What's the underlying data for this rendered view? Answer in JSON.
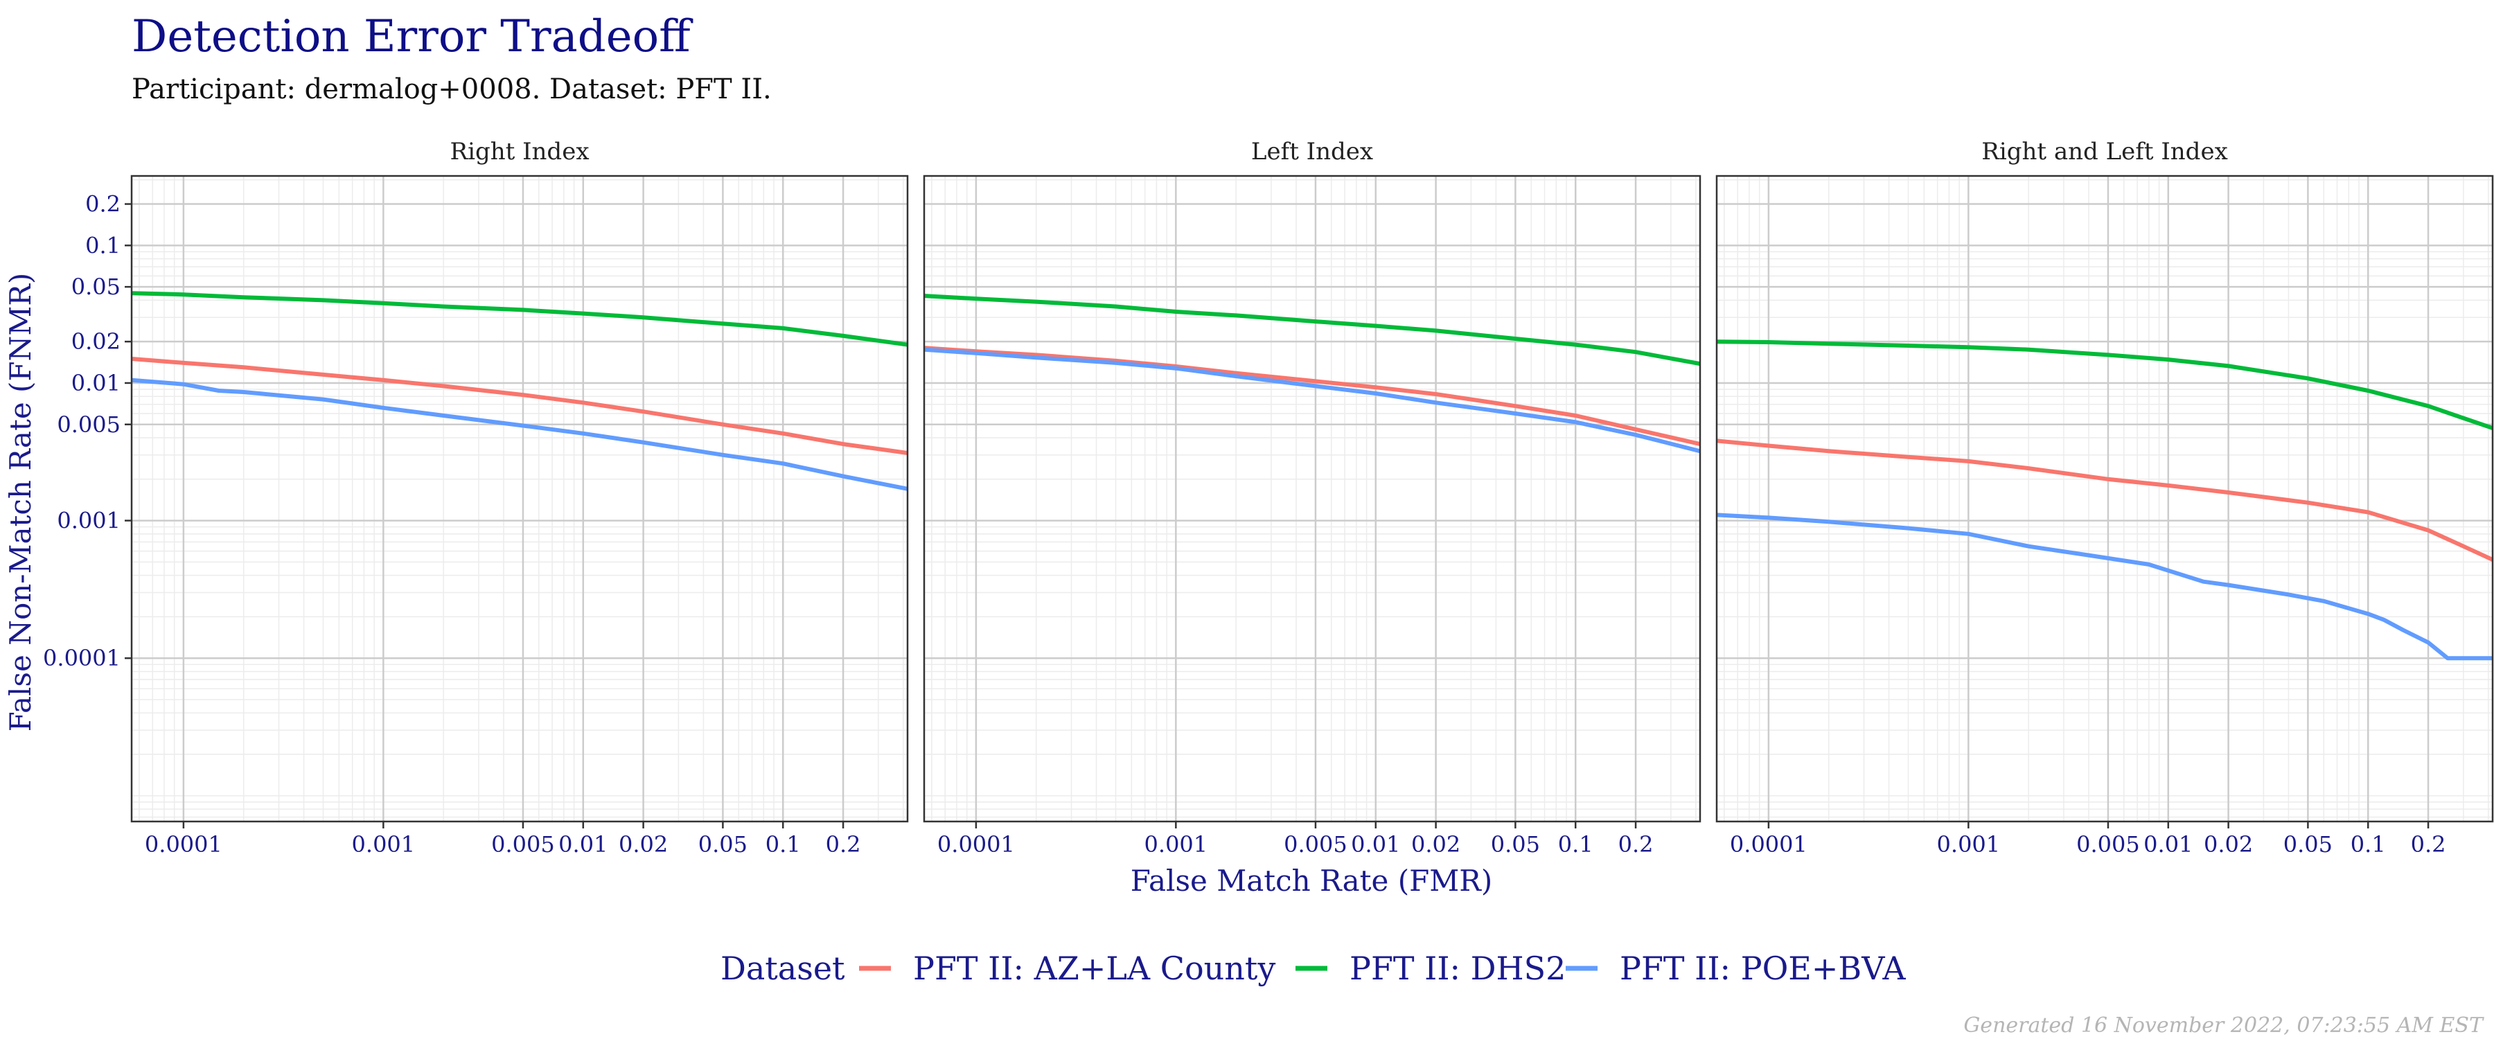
{
  "title": "Detection Error Tradeoff",
  "subtitle": "Participant: dermalog+0008. Dataset: PFT II.",
  "footer": "Generated 16 November 2022, 07:23:55 AM EST",
  "colors": {
    "title": "#0e0e87",
    "axis_text": "#1a1a8c",
    "panel_border": "#333333",
    "grid_major": "#cccccc",
    "grid_minor": "#ececec",
    "strip_text": "#222222",
    "footer": "#b5b5b5"
  },
  "chart_data": {
    "type": "line",
    "xlabel": "False Match Rate (FMR)",
    "ylabel": "False Non-Match Rate (FNMR)",
    "x_scale": "log10",
    "y_scale": "log10",
    "xlim": [
      5.5e-05,
      0.42
    ],
    "ylim": [
      6.5e-06,
      0.32
    ],
    "x_ticks": [
      {
        "v": 0.0001,
        "label": "0.0001"
      },
      {
        "v": 0.001,
        "label": "0.001"
      },
      {
        "v": 0.005,
        "label": "0.005"
      },
      {
        "v": 0.01,
        "label": "0.01"
      },
      {
        "v": 0.02,
        "label": "0.02"
      },
      {
        "v": 0.05,
        "label": "0.05"
      },
      {
        "v": 0.1,
        "label": "0.1"
      },
      {
        "v": 0.2,
        "label": "0.2"
      }
    ],
    "y_ticks": [
      {
        "v": 0.0001,
        "label": "0.0001"
      },
      {
        "v": 0.001,
        "label": "0.001"
      },
      {
        "v": 0.005,
        "label": "0.005"
      },
      {
        "v": 0.01,
        "label": "0.01"
      },
      {
        "v": 0.02,
        "label": "0.02"
      },
      {
        "v": 0.05,
        "label": "0.05"
      },
      {
        "v": 0.1,
        "label": "0.1"
      },
      {
        "v": 0.2,
        "label": "0.2"
      }
    ],
    "legend": {
      "title": "Dataset",
      "position": "bottom",
      "entries": [
        "PFT II: AZ+LA County",
        "PFT II: DHS2",
        "PFT II: POE+BVA"
      ]
    },
    "series_colors": {
      "PFT II: AZ+LA County": "#f8766d",
      "PFT II: DHS2": "#00ba38",
      "PFT II: POE+BVA": "#619cff"
    },
    "panels": [
      {
        "strip": "Right Index",
        "series": [
          {
            "name": "PFT II: AZ+LA County",
            "x": [
              5.5e-05,
              0.0001,
              0.0002,
              0.0005,
              0.001,
              0.002,
              0.005,
              0.01,
              0.02,
              0.05,
              0.1,
              0.2,
              0.42
            ],
            "y": [
              0.015,
              0.014,
              0.013,
              0.0115,
              0.0105,
              0.0095,
              0.0082,
              0.0072,
              0.0062,
              0.005,
              0.0043,
              0.0036,
              0.0031
            ]
          },
          {
            "name": "PFT II: DHS2",
            "x": [
              5.5e-05,
              0.0001,
              0.0002,
              0.0005,
              0.001,
              0.002,
              0.005,
              0.01,
              0.02,
              0.05,
              0.1,
              0.2,
              0.42
            ],
            "y": [
              0.045,
              0.044,
              0.042,
              0.04,
              0.038,
              0.036,
              0.034,
              0.032,
              0.03,
              0.027,
              0.025,
              0.022,
              0.019
            ]
          },
          {
            "name": "PFT II: POE+BVA",
            "x": [
              5.5e-05,
              0.0001,
              0.00015,
              0.0002,
              0.0005,
              0.001,
              0.002,
              0.005,
              0.01,
              0.02,
              0.05,
              0.1,
              0.2,
              0.42
            ],
            "y": [
              0.0105,
              0.0098,
              0.0088,
              0.0086,
              0.0076,
              0.0066,
              0.0058,
              0.0049,
              0.0043,
              0.0037,
              0.003,
              0.0026,
              0.0021,
              0.0017
            ]
          }
        ]
      },
      {
        "strip": "Left Index",
        "series": [
          {
            "name": "PFT II: AZ+LA County",
            "x": [
              5.5e-05,
              0.0001,
              0.0002,
              0.0005,
              0.001,
              0.002,
              0.005,
              0.01,
              0.02,
              0.05,
              0.1,
              0.2,
              0.42
            ],
            "y": [
              0.018,
              0.017,
              0.016,
              0.0145,
              0.0132,
              0.0118,
              0.0103,
              0.0093,
              0.0083,
              0.0068,
              0.0058,
              0.0046,
              0.0036
            ]
          },
          {
            "name": "PFT II: DHS2",
            "x": [
              5.5e-05,
              0.0001,
              0.0002,
              0.0005,
              0.001,
              0.002,
              0.005,
              0.01,
              0.02,
              0.05,
              0.1,
              0.2,
              0.42
            ],
            "y": [
              0.043,
              0.041,
              0.039,
              0.036,
              0.033,
              0.031,
              0.028,
              0.026,
              0.024,
              0.021,
              0.019,
              0.0168,
              0.0138
            ]
          },
          {
            "name": "PFT II: POE+BVA",
            "x": [
              5.5e-05,
              0.0001,
              0.0002,
              0.0005,
              0.001,
              0.002,
              0.005,
              0.01,
              0.02,
              0.05,
              0.1,
              0.2,
              0.42
            ],
            "y": [
              0.0175,
              0.0165,
              0.0153,
              0.014,
              0.0128,
              0.0112,
              0.0095,
              0.0084,
              0.0072,
              0.006,
              0.0052,
              0.0042,
              0.0032
            ]
          }
        ]
      },
      {
        "strip": "Right and Left Index",
        "series": [
          {
            "name": "PFT II: AZ+LA County",
            "x": [
              5.5e-05,
              0.0001,
              0.0002,
              0.0005,
              0.001,
              0.002,
              0.005,
              0.01,
              0.02,
              0.05,
              0.1,
              0.2,
              0.3,
              0.42
            ],
            "y": [
              0.0038,
              0.0035,
              0.0032,
              0.0029,
              0.0027,
              0.0024,
              0.002,
              0.0018,
              0.0016,
              0.00135,
              0.00115,
              0.00085,
              0.00065,
              0.00052
            ]
          },
          {
            "name": "PFT II: DHS2",
            "x": [
              5.5e-05,
              0.0001,
              0.0002,
              0.0005,
              0.001,
              0.002,
              0.005,
              0.01,
              0.02,
              0.05,
              0.1,
              0.2,
              0.42
            ],
            "y": [
              0.02,
              0.0198,
              0.0193,
              0.0187,
              0.0182,
              0.0175,
              0.016,
              0.0148,
              0.0133,
              0.0108,
              0.0088,
              0.0068,
              0.0047
            ]
          },
          {
            "name": "PFT II: POE+BVA",
            "x": [
              5.5e-05,
              0.0001,
              0.0002,
              0.0005,
              0.001,
              0.002,
              0.004,
              0.008,
              0.015,
              0.02,
              0.04,
              0.06,
              0.1,
              0.12,
              0.15,
              0.2,
              0.25,
              0.42
            ],
            "y": [
              0.0011,
              0.00105,
              0.00098,
              0.00088,
              0.0008,
              0.00065,
              0.00056,
              0.00048,
              0.00036,
              0.00034,
              0.00029,
              0.00026,
              0.00021,
              0.00019,
              0.00016,
              0.00013,
              0.0001,
              0.0001
            ]
          }
        ]
      }
    ]
  }
}
